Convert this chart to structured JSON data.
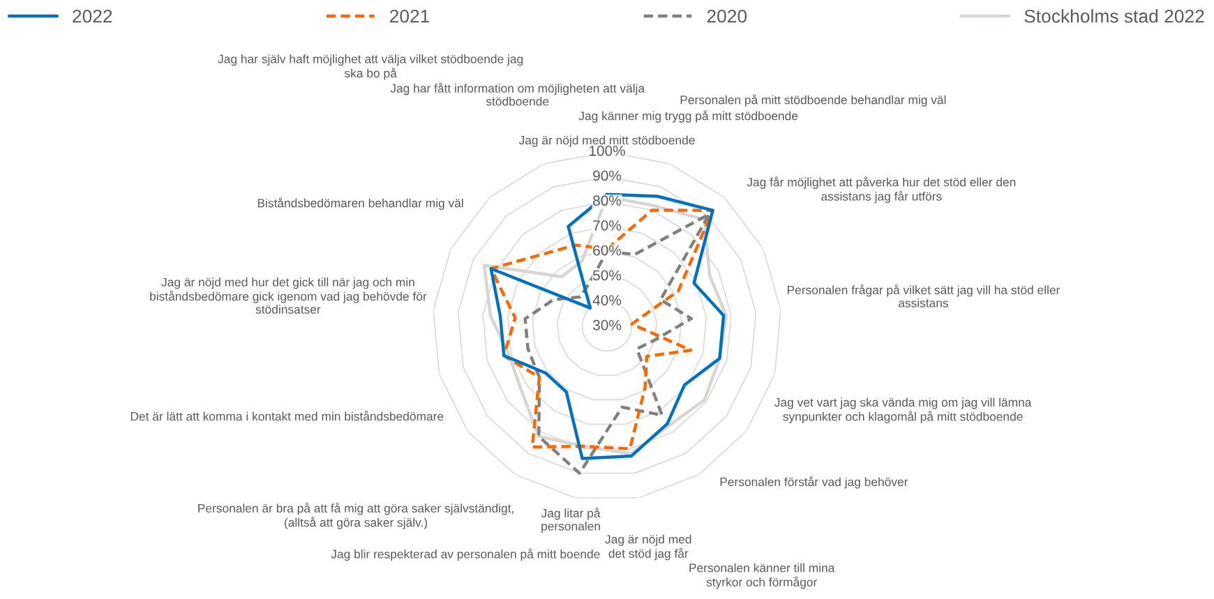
{
  "chart_data": {
    "type": "radar",
    "categories": [
      "Jag är nöjd med mitt stödboende",
      "Jag känner mig trygg på mitt stödboende",
      "Personalen på mitt stödboende behandlar mig väl",
      "Jag får möjlighet att påverka hur det stöd eller den\nassistans jag får utförs",
      "Personalen frågar på vilket sätt jag vill ha stöd eller\nassistans",
      "Jag vet vart jag ska vända mig om jag vill lämna\nsynpunkter och klagomål på mitt stödboende",
      "Personalen förstår vad jag behöver",
      "Personalen känner till mina\nstyrkor och förmågor",
      "Jag är nöjd med\ndet stöd jag får",
      "Jag litar på\npersonalen",
      "Jag blir respekterad av personalen på mitt boende",
      "Personalen är bra på att få mig att göra saker självständigt,\n(alltså att göra saker själv.)",
      "Det är lätt att komma i kontakt med min biståndsbedömare",
      "Jag är nöjd med hur det gick till när jag och min\nbiståndsbedömare gick igenom vad jag behövde för\nstödinsatser",
      "Biståndsbedömaren behandlar mig väl",
      "Jag har själv haft möjlighet att välja vilket stödboende jag\nska bo på",
      "Jag har fått information om möjligheten att välja\nstödboende"
    ],
    "series": [
      {
        "name": "2022",
        "color": "#0070c0",
        "line_style": "solid",
        "values": [
          83,
          86,
          93,
          69,
          77,
          77,
          69,
          76,
          83,
          84,
          61,
          61,
          73,
          73,
          82,
          40,
          73
        ]
      },
      {
        "name": "2021",
        "color": "#ff6600",
        "line_style": "dashed",
        "values": [
          61,
          80,
          93,
          62,
          40,
          65,
          50,
          59,
          80,
          79,
          87,
          64,
          73,
          67,
          82,
          69,
          65
        ]
      },
      {
        "name": "2020",
        "color": "#808080",
        "line_style": "dashed",
        "values": [
          60,
          61,
          91,
          54,
          64,
          50,
          45,
          72,
          63,
          90,
          82,
          64,
          63,
          63,
          54,
          46,
          49
        ]
      },
      {
        "name": "Stockholms stad 2022",
        "color": "#d9d5d0",
        "line_style": "solid",
        "values": [
          82,
          82,
          88,
          76,
          78,
          77,
          79,
          77,
          82,
          79,
          82,
          73,
          71,
          77,
          85,
          57,
          58
        ]
      }
    ],
    "ylim": [
      30,
      100
    ],
    "yticks": [
      {
        "value": 30,
        "label": "30%"
      },
      {
        "value": 40,
        "label": "40%"
      },
      {
        "value": 50,
        "label": "50%"
      },
      {
        "value": 60,
        "label": "60%"
      },
      {
        "value": 70,
        "label": "70%"
      },
      {
        "value": 80,
        "label": "80%"
      },
      {
        "value": 90,
        "label": "90%"
      },
      {
        "value": 100,
        "label": "100%"
      }
    ],
    "grid": true,
    "legend": "top",
    "marker": "none"
  }
}
